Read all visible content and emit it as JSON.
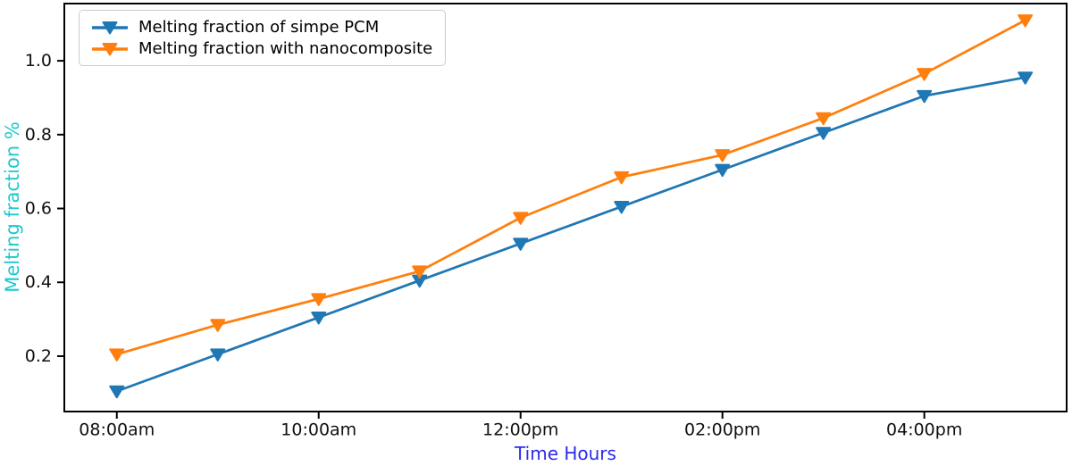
{
  "chart_data": {
    "type": "line",
    "title": "",
    "xlabel": "Time Hours",
    "ylabel": "Melting fraction %",
    "xlabel_color": "#2b2bef",
    "ylabel_color": "#20c8cd",
    "grid": false,
    "legend_position": "upper-left",
    "frame_color": "#000000",
    "tick_label_color": "#111111",
    "xlim": [
      -0.52,
      9.41
    ],
    "ylim": [
      0.05,
      1.155
    ],
    "x_ticks": [
      {
        "pos": 0,
        "label": "08:00am"
      },
      {
        "pos": 2,
        "label": "10:00am"
      },
      {
        "pos": 4,
        "label": "12:00pm"
      },
      {
        "pos": 6,
        "label": "02:00pm"
      },
      {
        "pos": 8,
        "label": "04:00pm"
      }
    ],
    "y_ticks": [
      {
        "value": 0.2,
        "label": "0.2"
      },
      {
        "value": 0.4,
        "label": "0.4"
      },
      {
        "value": 0.6,
        "label": "0.6"
      },
      {
        "value": 0.8,
        "label": "0.8"
      },
      {
        "value": 1.0,
        "label": "1.0"
      }
    ],
    "x": [
      0,
      1,
      2,
      3,
      4,
      5,
      6,
      7,
      8,
      9
    ],
    "series": [
      {
        "name": "Melting fraction of simpe PCM",
        "color": "#1f77b4",
        "marker": "triangle-down",
        "values": [
          0.105,
          0.205,
          0.305,
          0.405,
          0.505,
          0.605,
          0.705,
          0.805,
          0.905,
          0.955
        ]
      },
      {
        "name": "Melting fraction with nanocomposite",
        "color": "#ff7f0e",
        "marker": "triangle-down",
        "values": [
          0.205,
          0.285,
          0.355,
          0.43,
          0.575,
          0.685,
          0.745,
          0.845,
          0.965,
          1.11
        ]
      }
    ]
  }
}
